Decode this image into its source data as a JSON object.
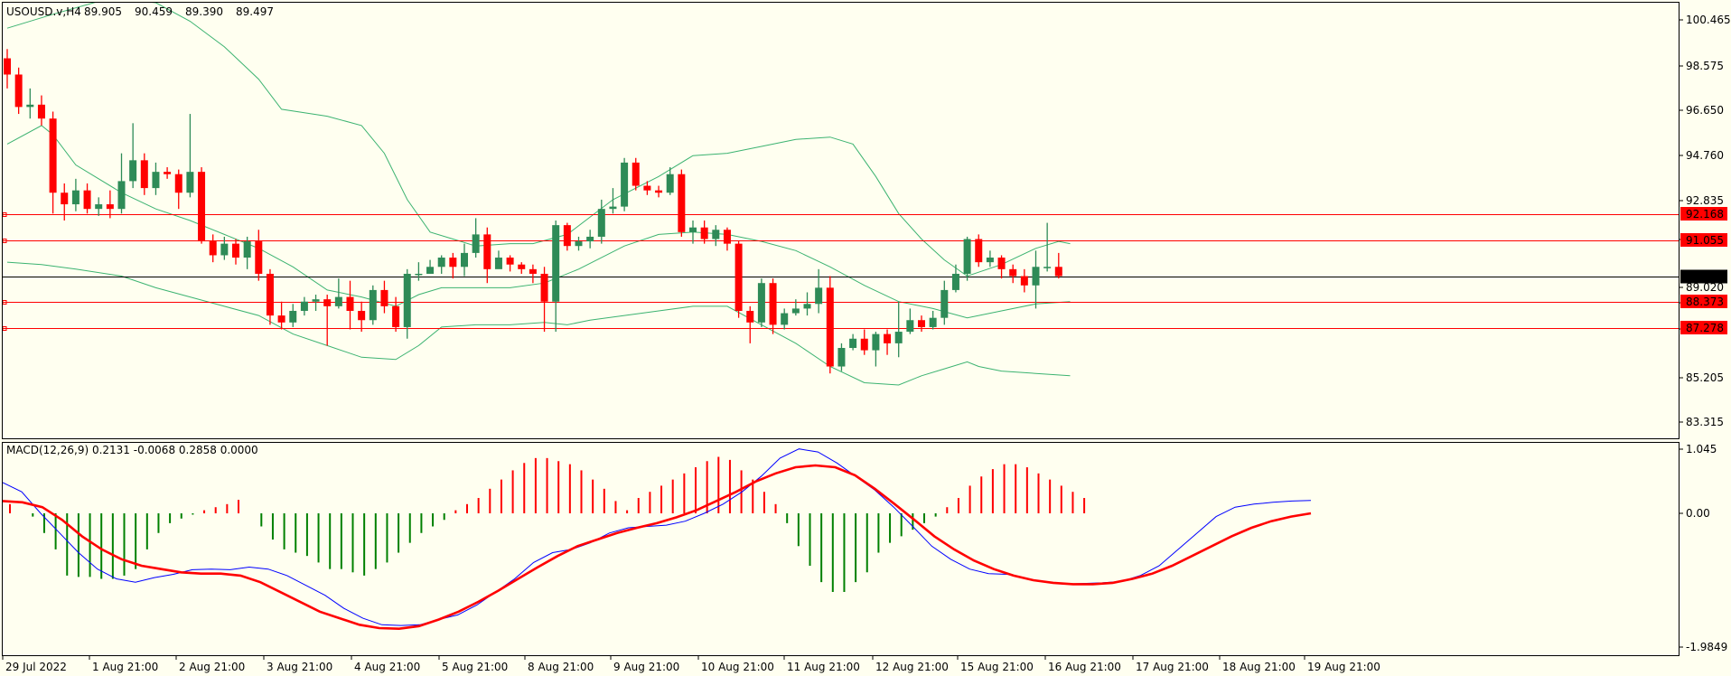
{
  "main_panel": {
    "header": {
      "symbol": "USOUSD.v,H4",
      "open": "89.905",
      "high": "90.459",
      "low": "89.390",
      "close": "89.497"
    },
    "y_ticks": [
      "100.465",
      "98.575",
      "96.650",
      "94.760",
      "92.835",
      "91.055",
      "89.020",
      "88.373",
      "87.278",
      "85.205",
      "83.315"
    ],
    "current_price_label": "89.497",
    "level_labels": [
      "92.168",
      "91.055",
      "88.373",
      "87.278"
    ]
  },
  "macd_panel": {
    "header": "MACD(12,26,9) 0.2131 -0.0068 0.2858 0.0000",
    "y_ticks": [
      "1.045",
      "0.00",
      "-1.9849"
    ]
  },
  "x_ticks": [
    "29 Jul 2022",
    "1 Aug 21:00",
    "2 Aug 21:00",
    "3 Aug 21:00",
    "4 Aug 21:00",
    "5 Aug 21:00",
    "8 Aug 21:00",
    "9 Aug 21:00",
    "10 Aug 21:00",
    "11 Aug 21:00",
    "12 Aug 21:00",
    "15 Aug 21:00",
    "16 Aug 21:00",
    "17 Aug 21:00",
    "18 Aug 21:00",
    "19 Aug 21:00"
  ],
  "colors": {
    "background": "#fffff0",
    "bull_candle": "#2e8b57",
    "bear_candle": "#ff0000",
    "bollinger": "#3cb371",
    "level_line": "#ff0000",
    "current_price_line": "#000000",
    "macd_line": "#0000ff",
    "signal_line": "#ff0000",
    "hist_positive": "#ff0000",
    "hist_negative": "#008000"
  },
  "chart_data": [
    {
      "type": "candlestick",
      "title": "USOUSD.v,H4",
      "ylim": [
        82.5,
        101.3
      ],
      "horizontal_levels": [
        92.168,
        91.055,
        88.373,
        87.278
      ],
      "current_price": 89.497,
      "candles": [
        [
          98.9,
          98.2,
          99.3,
          97.6
        ],
        [
          98.2,
          96.8,
          98.5,
          96.5
        ],
        [
          96.8,
          96.9,
          97.6,
          96.3
        ],
        [
          96.9,
          96.3,
          97.3,
          96.0
        ],
        [
          96.3,
          93.1,
          96.6,
          92.2
        ],
        [
          93.1,
          92.6,
          93.5,
          91.9
        ],
        [
          92.6,
          93.2,
          93.7,
          92.3
        ],
        [
          93.2,
          92.4,
          93.5,
          92.2
        ],
        [
          92.4,
          92.6,
          92.9,
          92.1
        ],
        [
          92.6,
          92.4,
          93.2,
          92.0
        ],
        [
          92.4,
          93.6,
          94.8,
          92.2
        ],
        [
          93.6,
          94.5,
          96.1,
          93.3
        ],
        [
          94.5,
          93.3,
          94.8,
          93.0
        ],
        [
          93.3,
          94.0,
          94.4,
          93.0
        ],
        [
          94.0,
          93.9,
          94.2,
          93.7
        ],
        [
          93.9,
          93.1,
          94.1,
          92.4
        ],
        [
          93.1,
          94.0,
          96.5,
          92.9
        ],
        [
          94.0,
          91.0,
          94.2,
          90.9
        ],
        [
          91.0,
          90.4,
          91.3,
          90.1
        ],
        [
          90.4,
          90.9,
          91.2,
          90.2
        ],
        [
          90.9,
          90.3,
          91.1,
          90.0
        ],
        [
          90.3,
          91.0,
          91.2,
          89.8
        ],
        [
          91.0,
          89.6,
          91.5,
          89.3
        ],
        [
          89.6,
          87.8,
          89.8,
          87.4
        ],
        [
          87.8,
          87.5,
          88.4,
          87.2
        ],
        [
          87.5,
          88.0,
          88.3,
          87.3
        ],
        [
          88.0,
          88.4,
          88.6,
          87.8
        ],
        [
          88.4,
          88.5,
          88.7,
          88.0
        ],
        [
          88.5,
          88.2,
          88.7,
          86.5
        ],
        [
          88.2,
          88.6,
          89.4,
          88.1
        ],
        [
          88.6,
          88.0,
          89.3,
          87.2
        ],
        [
          88.0,
          87.6,
          88.4,
          87.1
        ],
        [
          87.6,
          88.9,
          89.1,
          87.4
        ],
        [
          88.9,
          88.2,
          89.3,
          87.9
        ],
        [
          88.2,
          87.3,
          88.6,
          87.1
        ],
        [
          87.3,
          89.6,
          89.8,
          86.8
        ],
        [
          89.6,
          89.6,
          90.1,
          89.3
        ],
        [
          89.6,
          89.9,
          90.2,
          89.6
        ],
        [
          89.9,
          90.3,
          90.4,
          89.6
        ],
        [
          90.3,
          89.9,
          90.5,
          89.4
        ],
        [
          89.9,
          90.5,
          90.9,
          89.5
        ],
        [
          90.5,
          91.3,
          92.0,
          90.3
        ],
        [
          91.3,
          89.8,
          91.6,
          89.2
        ],
        [
          89.8,
          90.3,
          90.6,
          89.9
        ],
        [
          90.3,
          90.0,
          90.4,
          89.7
        ],
        [
          90.0,
          89.8,
          90.1,
          89.6
        ],
        [
          89.8,
          89.6,
          90.0,
          89.2
        ],
        [
          89.6,
          88.4,
          89.9,
          87.1
        ],
        [
          88.4,
          91.7,
          91.9,
          87.1
        ],
        [
          91.7,
          90.8,
          91.8,
          90.6
        ],
        [
          90.8,
          91.0,
          91.2,
          90.6
        ],
        [
          91.0,
          91.2,
          91.5,
          90.7
        ],
        [
          91.2,
          92.4,
          92.8,
          90.9
        ],
        [
          92.4,
          92.5,
          93.3,
          92.2
        ],
        [
          92.5,
          94.4,
          94.6,
          92.3
        ],
        [
          94.4,
          93.4,
          94.6,
          93.2
        ],
        [
          93.4,
          93.2,
          93.6,
          93.0
        ],
        [
          93.2,
          93.1,
          93.4,
          92.9
        ],
        [
          93.1,
          93.9,
          94.2,
          93.0
        ],
        [
          93.9,
          91.4,
          94.1,
          91.2
        ],
        [
          91.4,
          91.6,
          91.9,
          90.9
        ],
        [
          91.6,
          91.1,
          91.9,
          90.9
        ],
        [
          91.1,
          91.5,
          91.7,
          90.8
        ],
        [
          91.5,
          90.9,
          91.6,
          90.6
        ],
        [
          90.9,
          88.0,
          91.0,
          87.7
        ],
        [
          88.0,
          87.5,
          88.2,
          86.6
        ],
        [
          87.5,
          89.2,
          89.4,
          87.3
        ],
        [
          89.2,
          87.4,
          89.4,
          87.0
        ],
        [
          87.4,
          87.9,
          88.1,
          87.2
        ],
        [
          87.9,
          88.1,
          88.5,
          87.8
        ],
        [
          88.1,
          88.3,
          88.8,
          87.8
        ],
        [
          88.3,
          89.0,
          89.8,
          87.9
        ],
        [
          89.0,
          85.6,
          89.5,
          85.3
        ],
        [
          85.6,
          86.4,
          86.6,
          85.4
        ],
        [
          86.4,
          86.8,
          87.0,
          86.3
        ],
        [
          86.8,
          86.3,
          87.2,
          86.1
        ],
        [
          86.3,
          87.0,
          87.1,
          85.6
        ],
        [
          87.0,
          86.6,
          87.2,
          86.1
        ],
        [
          86.6,
          87.1,
          88.4,
          86.0
        ],
        [
          87.1,
          87.6,
          88.1,
          87.0
        ],
        [
          87.6,
          87.3,
          87.8,
          87.1
        ],
        [
          87.3,
          87.7,
          88.0,
          87.2
        ],
        [
          87.7,
          88.9,
          89.3,
          87.4
        ],
        [
          88.9,
          89.6,
          90.0,
          88.8
        ],
        [
          89.6,
          91.1,
          91.2,
          89.3
        ],
        [
          91.1,
          90.1,
          91.3,
          89.9
        ],
        [
          90.1,
          90.3,
          90.6,
          89.9
        ],
        [
          90.3,
          89.8,
          90.4,
          89.4
        ],
        [
          89.8,
          89.5,
          90.0,
          89.2
        ],
        [
          89.5,
          89.1,
          89.8,
          88.8
        ],
        [
          89.1,
          89.9,
          90.6,
          88.1
        ],
        [
          89.9,
          89.9,
          91.8,
          89.7
        ],
        [
          89.9,
          89.5,
          90.5,
          89.4
        ]
      ],
      "bollinger": {
        "upper": [
          [
            0,
            100.2
          ],
          [
            4,
            100.8
          ],
          [
            9,
            101.5
          ],
          [
            13,
            101.3
          ],
          [
            16,
            100.5
          ],
          [
            19,
            99.4
          ],
          [
            22,
            98.0
          ],
          [
            24,
            96.7
          ],
          [
            28,
            96.4
          ],
          [
            31,
            96.0
          ],
          [
            33,
            94.8
          ],
          [
            35,
            92.8
          ],
          [
            37,
            91.4
          ],
          [
            41,
            90.8
          ],
          [
            44,
            90.9
          ],
          [
            46,
            90.9
          ],
          [
            49,
            91.3
          ],
          [
            53,
            92.8
          ],
          [
            57,
            93.8
          ],
          [
            60,
            94.7
          ],
          [
            63,
            94.8
          ],
          [
            66,
            95.1
          ],
          [
            69,
            95.4
          ],
          [
            72,
            95.5
          ],
          [
            74,
            95.2
          ],
          [
            76,
            93.8
          ],
          [
            78,
            92.2
          ],
          [
            80,
            91.1
          ],
          [
            82,
            90.2
          ],
          [
            84,
            89.5
          ],
          [
            87,
            90.0
          ],
          [
            90,
            90.7
          ],
          [
            92,
            91.0
          ],
          [
            93,
            90.9
          ]
        ],
        "middle": [
          [
            0,
            95.2
          ],
          [
            3,
            96.0
          ],
          [
            4,
            95.6
          ],
          [
            6,
            94.3
          ],
          [
            10,
            93.1
          ],
          [
            13,
            92.4
          ],
          [
            16,
            91.9
          ],
          [
            19,
            91.3
          ],
          [
            22,
            90.7
          ],
          [
            25,
            89.9
          ],
          [
            28,
            88.9
          ],
          [
            31,
            88.6
          ],
          [
            34,
            88.2
          ],
          [
            36,
            88.7
          ],
          [
            38,
            89.0
          ],
          [
            41,
            89.0
          ],
          [
            44,
            89.0
          ],
          [
            47,
            89.2
          ],
          [
            50,
            89.8
          ],
          [
            54,
            90.8
          ],
          [
            57,
            91.3
          ],
          [
            60,
            91.4
          ],
          [
            63,
            91.3
          ],
          [
            66,
            91.0
          ],
          [
            69,
            90.6
          ],
          [
            72,
            89.9
          ],
          [
            75,
            89.1
          ],
          [
            78,
            88.4
          ],
          [
            81,
            88.1
          ],
          [
            84,
            87.7
          ],
          [
            87,
            88.0
          ],
          [
            90,
            88.3
          ],
          [
            93,
            88.4
          ]
        ],
        "lower": [
          [
            0,
            90.1
          ],
          [
            3,
            90.0
          ],
          [
            6,
            89.8
          ],
          [
            10,
            89.5
          ],
          [
            13,
            89.0
          ],
          [
            16,
            88.6
          ],
          [
            19,
            88.2
          ],
          [
            22,
            87.8
          ],
          [
            25,
            87.0
          ],
          [
            28,
            86.5
          ],
          [
            31,
            86.0
          ],
          [
            34,
            85.9
          ],
          [
            36,
            86.5
          ],
          [
            38,
            87.3
          ],
          [
            41,
            87.4
          ],
          [
            44,
            87.4
          ],
          [
            47,
            87.5
          ],
          [
            49,
            87.4
          ],
          [
            51,
            87.6
          ],
          [
            54,
            87.8
          ],
          [
            57,
            88.0
          ],
          [
            60,
            88.2
          ],
          [
            63,
            88.2
          ],
          [
            66,
            87.4
          ],
          [
            69,
            86.6
          ],
          [
            72,
            85.6
          ],
          [
            75,
            84.9
          ],
          [
            78,
            84.8
          ],
          [
            80,
            85.2
          ],
          [
            82,
            85.5
          ],
          [
            84,
            85.8
          ],
          [
            85,
            85.6
          ],
          [
            87,
            85.4
          ],
          [
            90,
            85.3
          ],
          [
            93,
            85.2
          ]
        ]
      }
    },
    {
      "type": "bar+line",
      "title": "MACD(12,26,9)",
      "ylim": [
        -1.9849,
        1.045
      ],
      "histogram": [
        0.15,
        0.0,
        -0.05,
        -0.3,
        -0.55,
        -0.95,
        -0.97,
        -0.97,
        -1.0,
        -1.0,
        -0.95,
        -0.85,
        -0.55,
        -0.3,
        -0.15,
        -0.08,
        -0.02,
        0.05,
        0.1,
        0.15,
        0.22,
        0.0,
        -0.2,
        -0.4,
        -0.55,
        -0.6,
        -0.65,
        -0.75,
        -0.85,
        -0.85,
        -0.9,
        -0.95,
        -0.85,
        -0.75,
        -0.6,
        -0.45,
        -0.3,
        -0.2,
        -0.1,
        0.05,
        0.15,
        0.25,
        0.4,
        0.55,
        0.7,
        0.82,
        0.9,
        0.9,
        0.85,
        0.8,
        0.7,
        0.55,
        0.4,
        0.2,
        0.05,
        0.25,
        0.35,
        0.45,
        0.55,
        0.65,
        0.75,
        0.85,
        0.92,
        0.87,
        0.7,
        0.55,
        0.35,
        0.15,
        -0.15,
        -0.5,
        -0.8,
        -1.05,
        -1.2,
        -1.2,
        -1.05,
        -0.9,
        -0.6,
        -0.45,
        -0.35,
        -0.25,
        -0.15,
        -0.05,
        0.1,
        0.25,
        0.45,
        0.6,
        0.72,
        0.8,
        0.8,
        0.75,
        0.65,
        0.55,
        0.45,
        0.35,
        0.25
      ],
      "macd": [
        0.5,
        0.35,
        0.0,
        -0.3,
        -0.6,
        -0.85,
        -1.0,
        -1.05,
        -0.98,
        -0.93,
        -0.86,
        -0.85,
        -0.86,
        -0.82,
        -0.85,
        -0.95,
        -1.1,
        -1.25,
        -1.45,
        -1.6,
        -1.7,
        -1.71,
        -1.7,
        -1.62,
        -1.55,
        -1.4,
        -1.2,
        -1.0,
        -0.75,
        -0.6,
        -0.55,
        -0.45,
        -0.3,
        -0.22,
        -0.2,
        -0.18,
        -0.12,
        0.0,
        0.15,
        0.35,
        0.6,
        0.9,
        1.05,
        1.0,
        0.82,
        0.6,
        0.38,
        0.1,
        -0.2,
        -0.5,
        -0.7,
        -0.85,
        -0.92,
        -0.93,
        -1.0,
        -1.05,
        -1.08,
        -1.07,
        -1.06,
        -1.04,
        -0.95,
        -0.8,
        -0.55,
        -0.3,
        -0.05,
        0.1,
        0.15,
        0.18,
        0.2,
        0.21
      ],
      "signal": [
        0.2,
        0.18,
        0.1,
        -0.1,
        -0.35,
        -0.55,
        -0.7,
        -0.8,
        -0.85,
        -0.9,
        -0.92,
        -0.92,
        -0.95,
        -1.05,
        -1.2,
        -1.35,
        -1.5,
        -1.6,
        -1.7,
        -1.75,
        -1.76,
        -1.72,
        -1.62,
        -1.5,
        -1.35,
        -1.18,
        -1.0,
        -0.82,
        -0.65,
        -0.5,
        -0.4,
        -0.3,
        -0.22,
        -0.15,
        -0.06,
        0.05,
        0.2,
        0.35,
        0.52,
        0.65,
        0.75,
        0.78,
        0.75,
        0.62,
        0.4,
        0.15,
        -0.1,
        -0.35,
        -0.55,
        -0.72,
        -0.85,
        -0.95,
        -1.02,
        -1.06,
        -1.08,
        -1.08,
        -1.06,
        -1.0,
        -0.92,
        -0.8,
        -0.65,
        -0.5,
        -0.35,
        -0.22,
        -0.12,
        -0.05,
        0.0
      ]
    }
  ]
}
